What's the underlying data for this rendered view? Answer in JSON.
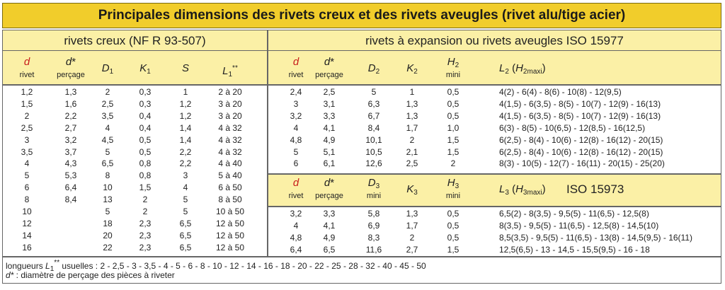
{
  "title": "Principales dimensions des rivets creux et des rivets aveugles (rivet alu/tige acier)",
  "left": {
    "heading": "rivets creux (NF R 93-507)",
    "columns": [
      {
        "segments": [
          {
            "text": "d",
            "style": "red-italic"
          }
        ],
        "label": "rivet"
      },
      {
        "segments": [
          {
            "text": "d",
            "style": "italic"
          },
          {
            "text": "*",
            "style": "plain"
          }
        ],
        "label": "perçage"
      },
      {
        "segments": [
          {
            "text": "D",
            "style": "italic"
          },
          {
            "text": "1",
            "style": "sub"
          }
        ]
      },
      {
        "segments": [
          {
            "text": "K",
            "style": "italic"
          },
          {
            "text": "1",
            "style": "sub"
          }
        ]
      },
      {
        "segments": [
          {
            "text": "S",
            "style": "italic"
          }
        ]
      },
      {
        "segments": [
          {
            "text": "L",
            "style": "italic"
          },
          {
            "text": "1",
            "style": "sub"
          },
          {
            "text": "**",
            "style": "sup"
          }
        ]
      }
    ],
    "rows": [
      [
        "1,2",
        "1,3",
        "2",
        "0,3",
        "1",
        "2 à 20"
      ],
      [
        "1,5",
        "1,6",
        "2,5",
        "0,3",
        "1,2",
        "3 à 20"
      ],
      [
        "2",
        "2,2",
        "3,5",
        "0,4",
        "1,2",
        "3 à 20"
      ],
      [
        "2,5",
        "2,7",
        "4",
        "0,4",
        "1,4",
        "4 à 32"
      ],
      [
        "3",
        "3,2",
        "4,5",
        "0,5",
        "1,4",
        "4 à 32"
      ],
      [
        "3,5",
        "3,7",
        "5",
        "0,5",
        "2,2",
        "4 à 32"
      ],
      [
        "4",
        "4,3",
        "6,5",
        "0,8",
        "2,2",
        "4 à 40"
      ],
      [
        "5",
        "5,3",
        "8",
        "0,8",
        "3",
        "5 à 40"
      ],
      [
        "6",
        "6,4",
        "10",
        "1,5",
        "4",
        "6 à 50"
      ],
      [
        "8",
        "8,4",
        "13",
        "2",
        "5",
        "8 à 50"
      ],
      [
        "10",
        null,
        "5",
        "2",
        "5",
        "10 à 50"
      ],
      [
        "12",
        null,
        "18",
        "2,3",
        "6,5",
        "12 à 50"
      ],
      [
        "14",
        null,
        "20",
        "2,3",
        "6,5",
        "12 à 50"
      ],
      [
        "16",
        null,
        "22",
        "2,3",
        "6,5",
        "12 à 50"
      ]
    ]
  },
  "right_top": {
    "heading": "rivets à expansion ou rivets aveugles ISO 15977",
    "columns": [
      {
        "segments": [
          {
            "text": "d",
            "style": "red-italic"
          }
        ],
        "label": "rivet"
      },
      {
        "segments": [
          {
            "text": "d",
            "style": "italic"
          },
          {
            "text": "*",
            "style": "plain"
          }
        ],
        "label": "perçage"
      },
      {
        "segments": [
          {
            "text": "D",
            "style": "italic"
          },
          {
            "text": "2",
            "style": "sub"
          }
        ]
      },
      {
        "segments": [
          {
            "text": "K",
            "style": "italic"
          },
          {
            "text": "2",
            "style": "sub"
          }
        ]
      },
      {
        "segments": [
          {
            "text": "H",
            "style": "italic"
          },
          {
            "text": "2",
            "style": "sub"
          }
        ],
        "label": "mini"
      },
      {
        "segments": [
          {
            "text": "L",
            "style": "italic"
          },
          {
            "text": "2",
            "style": "sub"
          },
          {
            "text": " (",
            "style": "plain"
          },
          {
            "text": "H",
            "style": "italic"
          },
          {
            "text": "2",
            "style": "sub"
          },
          {
            "text": "maxi",
            "style": "sub"
          },
          {
            "text": ")",
            "style": "plain"
          }
        ]
      }
    ],
    "rows": [
      [
        "2,4",
        "2,5",
        "5",
        "1",
        "0,5",
        "4(2) - 6(4) - 8(6) - 10(8) - 12(9,5)"
      ],
      [
        "3",
        "3,1",
        "6,3",
        "1,3",
        "0,5",
        "4(1,5) - 6(3,5) - 8(5) - 10(7) - 12(9) - 16(13)"
      ],
      [
        "3,2",
        "3,3",
        "6,7",
        "1,3",
        "0,5",
        "4(1,5) - 6(3,5) - 8(5) - 10(7) - 12(9) - 16(13)"
      ],
      [
        "4",
        "4,1",
        "8,4",
        "1,7",
        "1,0",
        "6(3) - 8(5) - 10(6,5) - 12(8,5) - 16(12,5)"
      ],
      [
        "4,8",
        "4,9",
        "10,1",
        "2",
        "1,5",
        "6(2,5) - 8(4) - 10(6) - 12(8) - 16(12) - 20(15)"
      ],
      [
        "5",
        "5,1",
        "10,5",
        "2,1",
        "1,5",
        "6(2,5) - 8(4) - 10(6) - 12(8) - 16(12) - 20(15)"
      ],
      [
        "6",
        "6,1",
        "12,6",
        "2,5",
        "2",
        "8(3) - 10(5) - 12(7) - 16(11) - 20(15) - 25(20)"
      ]
    ]
  },
  "right_bottom": {
    "standard": "ISO 15973",
    "columns": [
      {
        "segments": [
          {
            "text": "d",
            "style": "red-italic"
          }
        ],
        "label": "rivet"
      },
      {
        "segments": [
          {
            "text": "d",
            "style": "italic"
          },
          {
            "text": "*",
            "style": "plain"
          }
        ],
        "label": "perçage"
      },
      {
        "segments": [
          {
            "text": "D",
            "style": "italic"
          },
          {
            "text": "3",
            "style": "sub"
          }
        ],
        "label": "mini"
      },
      {
        "segments": [
          {
            "text": "K",
            "style": "italic"
          },
          {
            "text": "3",
            "style": "sub"
          }
        ]
      },
      {
        "segments": [
          {
            "text": "H",
            "style": "italic"
          },
          {
            "text": "3",
            "style": "sub"
          }
        ],
        "label": "mini"
      },
      {
        "segments": [
          {
            "text": "L",
            "style": "italic"
          },
          {
            "text": "3",
            "style": "sub"
          },
          {
            "text": " (",
            "style": "plain"
          },
          {
            "text": "H",
            "style": "italic"
          },
          {
            "text": "3",
            "style": "sub"
          },
          {
            "text": "maxi",
            "style": "sub"
          },
          {
            "text": ")",
            "style": "plain"
          }
        ]
      }
    ],
    "rows": [
      [
        "3,2",
        "3,3",
        "5,8",
        "1,3",
        "0,5",
        "6,5(2) - 8(3,5) - 9,5(5) - 11(6,5) - 12,5(8)"
      ],
      [
        "4",
        "4,1",
        "6,9",
        "1,7",
        "0,5",
        "8(3,5) - 9,5(5) - 11(6,5) - 12,5(8) - 14,5(10)"
      ],
      [
        "4,8",
        "4,9",
        "8,3",
        "2",
        "0,5",
        "8,5(3,5) - 9,5(5) - 11(6,5) - 13(8) - 14,5(9,5) - 16(11)"
      ],
      [
        "6,4",
        "6,5",
        "11,6",
        "2,7",
        "1,5",
        "12,5(6,5) - 13 - 14,5 - 15,5(9,5) - 16 - 18"
      ]
    ]
  },
  "footnotes": [
    [
      {
        "text": "longueurs ",
        "style": "plain"
      },
      {
        "text": "L",
        "style": "italic"
      },
      {
        "text": "1",
        "style": "sub"
      },
      {
        "text": "**",
        "style": "sup"
      },
      {
        "text": " usuelles : 2 - 2,5 - 3 - 3,5 - 4 - 5 - 6 - 8 - 10 - 12 - 14 - 16 - 18 - 20 - 22 - 25 - 28 - 32 - 40 - 45 - 50",
        "style": "plain"
      }
    ],
    [
      {
        "text": "d*",
        "style": "italic"
      },
      {
        "text": " : diamètre de perçage des pièces à riveter",
        "style": "plain"
      }
    ]
  ]
}
